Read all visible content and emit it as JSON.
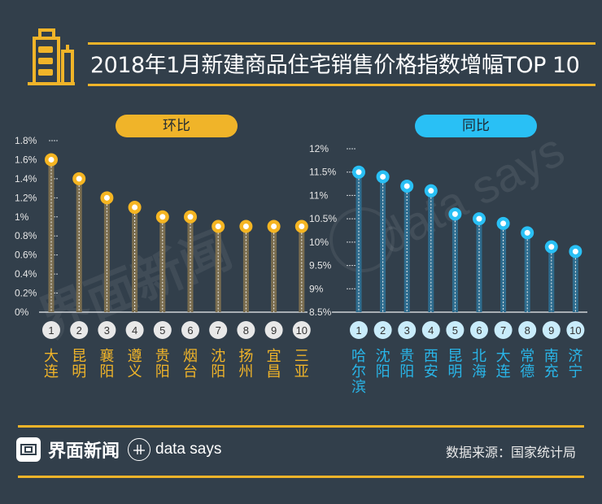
{
  "header": {
    "title": "2018年1月新建商品住宅销售价格指数增幅TOP 10",
    "icon": "building-icon",
    "accent_color": "#f0b429"
  },
  "watermarks": [
    "界面新闻",
    "data says"
  ],
  "chart_data": [
    {
      "type": "lollipop",
      "title": "环比",
      "color": "#f5b522",
      "stem_color": "#7a6d4f",
      "ylabel": "",
      "xlabel": "",
      "ylim": [
        0,
        1.8
      ],
      "y_ticks": [
        "0%",
        "0.2%",
        "0.4%",
        "0.6%",
        "0.8%",
        "1%",
        "1.2%",
        "1.4%",
        "1.6%",
        "1.8%"
      ],
      "y_tick_values": [
        0,
        0.2,
        0.4,
        0.6,
        0.8,
        1.0,
        1.2,
        1.4,
        1.6,
        1.8
      ],
      "ranks": [
        "1",
        "2",
        "3",
        "4",
        "5",
        "6",
        "7",
        "8",
        "9",
        "10"
      ],
      "categories": [
        [
          "大",
          "连"
        ],
        [
          "昆",
          "明"
        ],
        [
          "襄",
          "阳"
        ],
        [
          "遵",
          "义"
        ],
        [
          "贵",
          "阳"
        ],
        [
          "烟",
          "台"
        ],
        [
          "沈",
          "阳"
        ],
        [
          "扬",
          "州"
        ],
        [
          "宜",
          "昌"
        ],
        [
          "三",
          "亚"
        ]
      ],
      "values": [
        1.6,
        1.4,
        1.2,
        1.1,
        1.0,
        1.0,
        0.9,
        0.9,
        0.9,
        0.9
      ],
      "unit": "%",
      "grid": false
    },
    {
      "type": "lollipop",
      "title": "同比",
      "color": "#29c0f5",
      "stem_color": "#2e6c8e",
      "ylabel": "",
      "xlabel": "",
      "ylim": [
        8.5,
        12
      ],
      "y_ticks": [
        "8.5%",
        "9%",
        "9.5%",
        "10%",
        "10.5%",
        "11%",
        "11.5%",
        "12%"
      ],
      "y_tick_values": [
        8.5,
        9,
        9.5,
        10,
        10.5,
        11,
        11.5,
        12
      ],
      "ranks": [
        "1",
        "2",
        "3",
        "4",
        "5",
        "6",
        "7",
        "8",
        "9",
        "10"
      ],
      "categories": [
        [
          "哈",
          "尔",
          "滨"
        ],
        [
          "沈",
          "阳"
        ],
        [
          "贵",
          "阳"
        ],
        [
          "西",
          "安"
        ],
        [
          "昆",
          "明"
        ],
        [
          "北",
          "海"
        ],
        [
          "大",
          "连"
        ],
        [
          "常",
          "德"
        ],
        [
          "南",
          "充"
        ],
        [
          "济",
          "宁"
        ]
      ],
      "values": [
        11.5,
        11.4,
        11.2,
        11.1,
        10.6,
        10.5,
        10.4,
        10.2,
        9.9,
        9.8
      ],
      "unit": "%",
      "grid": false
    }
  ],
  "footer": {
    "brand_name": "界面新闻",
    "brand_logo": "jiemian-logo-icon",
    "datasays_logo": "data-says-logo-icon",
    "datasays_label": "data says",
    "source": "数据来源：国家统计局"
  }
}
